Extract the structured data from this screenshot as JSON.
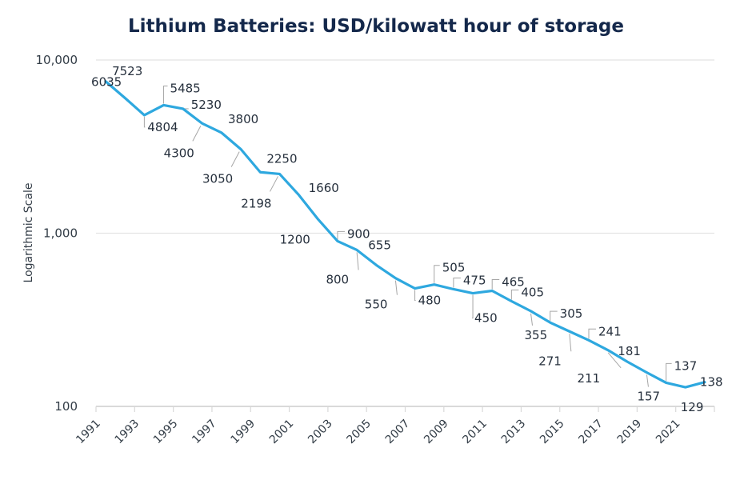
{
  "chart_data": {
    "type": "line",
    "title": "Lithium Batteries: USD/kilowatt hour of storage",
    "xlabel": "",
    "ylabel": "Logarithmic Scale",
    "yscale": "log",
    "ylim": [
      100,
      10000
    ],
    "yticks": [
      {
        "value": 100,
        "label": "100"
      },
      {
        "value": 1000,
        "label": "1,000"
      },
      {
        "value": 10000,
        "label": "10,000"
      }
    ],
    "xtick_labels": [
      "1991",
      "1993",
      "1995",
      "1997",
      "1999",
      "2001",
      "2003",
      "2005",
      "2007",
      "2009",
      "2011",
      "2013",
      "2015",
      "2017",
      "2019",
      "2021"
    ],
    "grid": true,
    "legend": "none",
    "series_color": "#2ea8df",
    "x": [
      1991,
      1992,
      1993,
      1994,
      1995,
      1996,
      1997,
      1998,
      1999,
      2000,
      2001,
      2002,
      2003,
      2004,
      2005,
      2006,
      2007,
      2008,
      2009,
      2010,
      2011,
      2012,
      2013,
      2014,
      2015,
      2016,
      2017,
      2018,
      2019,
      2020,
      2021,
      2022
    ],
    "series": [
      {
        "name": "USD/kWh",
        "values": [
          7523,
          6035,
          4804,
          5485,
          5230,
          4300,
          3800,
          3050,
          2250,
          2198,
          1660,
          1200,
          900,
          800,
          655,
          550,
          480,
          505,
          475,
          450,
          465,
          405,
          355,
          305,
          271,
          241,
          211,
          181,
          157,
          137,
          129,
          138
        ],
        "labels": [
          "7523",
          "6035",
          "4804",
          "5485",
          "5230",
          "4300",
          "3800",
          "3050",
          "2250",
          "2198",
          "1660",
          "1200",
          "900",
          "800",
          "655",
          "550",
          "480",
          "505",
          "475",
          "450",
          "465",
          "405",
          "355",
          "305",
          "271",
          "241",
          "211",
          "181",
          "157",
          "137",
          "129",
          "138"
        ]
      }
    ]
  }
}
